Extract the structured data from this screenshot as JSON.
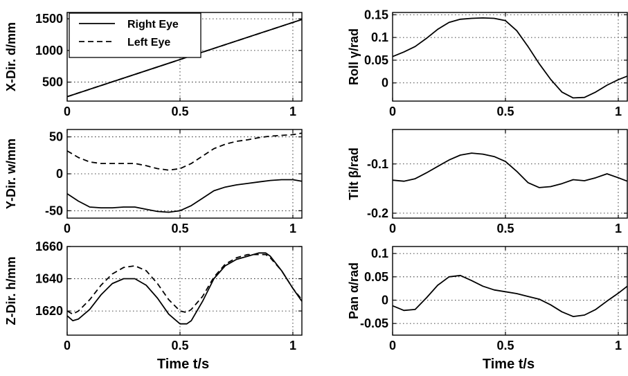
{
  "chart_data": [
    {
      "type": "line",
      "panel": "top-left",
      "ylabel": "X-Dir.  d/mm",
      "xlabel": "",
      "xlim": [
        0,
        1.04
      ],
      "ylim": [
        200,
        1600
      ],
      "xticks": [
        0,
        0.5,
        1
      ],
      "yticks": [
        500,
        1000,
        1500
      ],
      "xtick_labels": [
        "0",
        "0.5",
        "1"
      ],
      "ytick_labels": [
        "500",
        "1000",
        "1500"
      ],
      "grid": true,
      "legend": {
        "placement": "top-left",
        "entries": [
          "Right Eye",
          "Left Eye"
        ]
      },
      "series": [
        {
          "name": "Right Eye",
          "style": "solid",
          "x": [
            0,
            1.04
          ],
          "y": [
            270,
            1490
          ]
        },
        {
          "name": "Left Eye",
          "style": "dashed",
          "x": [
            0,
            1.04
          ],
          "y": [
            270,
            1490
          ]
        }
      ]
    },
    {
      "type": "line",
      "panel": "middle-left",
      "ylabel": "Y-Dir.  w/mm",
      "xlabel": "",
      "xlim": [
        0,
        1.04
      ],
      "ylim": [
        -60,
        60
      ],
      "xticks": [
        0,
        0.5,
        1
      ],
      "yticks": [
        -50,
        0,
        50
      ],
      "xtick_labels": [
        "0",
        "0.5",
        "1"
      ],
      "ytick_labels": [
        "-50",
        "0",
        "50"
      ],
      "grid": true,
      "series": [
        {
          "style": "solid",
          "x": [
            0,
            0.05,
            0.1,
            0.15,
            0.2,
            0.25,
            0.3,
            0.35,
            0.4,
            0.45,
            0.5,
            0.55,
            0.6,
            0.65,
            0.7,
            0.75,
            0.8,
            0.85,
            0.9,
            0.95,
            1.0,
            1.04
          ],
          "y": [
            -27,
            -37,
            -45,
            -46,
            -46,
            -45,
            -45,
            -48,
            -51,
            -52,
            -50,
            -43,
            -33,
            -23,
            -18,
            -15,
            -13,
            -11,
            -9,
            -8,
            -8,
            -10
          ]
        },
        {
          "style": "dashed",
          "x": [
            0,
            0.05,
            0.1,
            0.15,
            0.2,
            0.25,
            0.3,
            0.35,
            0.4,
            0.45,
            0.5,
            0.55,
            0.6,
            0.65,
            0.7,
            0.75,
            0.8,
            0.85,
            0.9,
            0.95,
            1.0,
            1.04
          ],
          "y": [
            31,
            22,
            16,
            14,
            14,
            14,
            14,
            11,
            7,
            5,
            7,
            14,
            24,
            34,
            40,
            44,
            46,
            49,
            51,
            52,
            53,
            55
          ]
        }
      ]
    },
    {
      "type": "line",
      "panel": "bottom-left",
      "ylabel": "Z-Dir.  h/mm",
      "xlabel": "Time   t/s",
      "xlim": [
        0,
        1.04
      ],
      "ylim": [
        1605,
        1660
      ],
      "xticks": [
        0,
        0.5,
        1
      ],
      "yticks": [
        1620,
        1640,
        1660
      ],
      "xtick_labels": [
        "0",
        "0.5",
        "1"
      ],
      "ytick_labels": [
        "1620",
        "1640",
        "1660"
      ],
      "grid": true,
      "series": [
        {
          "style": "solid",
          "x": [
            0,
            0.025,
            0.05,
            0.1,
            0.15,
            0.2,
            0.25,
            0.3,
            0.35,
            0.4,
            0.45,
            0.5,
            0.53,
            0.55,
            0.6,
            0.65,
            0.7,
            0.75,
            0.8,
            0.85,
            0.88,
            0.9,
            0.95,
            1.0,
            1.04
          ],
          "y": [
            1617,
            1614,
            1615,
            1621,
            1630,
            1637,
            1640,
            1640,
            1636,
            1628,
            1618,
            1612,
            1612,
            1614,
            1626,
            1640,
            1648,
            1652,
            1654,
            1656,
            1656,
            1654,
            1645,
            1634,
            1626
          ]
        },
        {
          "style": "dashed",
          "x": [
            0,
            0.025,
            0.05,
            0.1,
            0.15,
            0.2,
            0.25,
            0.3,
            0.35,
            0.4,
            0.45,
            0.5,
            0.53,
            0.55,
            0.6,
            0.65,
            0.7,
            0.75,
            0.8,
            0.85,
            0.88,
            0.9,
            0.95,
            1.0,
            1.04
          ],
          "y": [
            1620,
            1618,
            1620,
            1627,
            1636,
            1643,
            1647,
            1648,
            1645,
            1637,
            1627,
            1620,
            1619,
            1621,
            1629,
            1641,
            1649,
            1653,
            1655,
            1655,
            1655,
            1653,
            1645,
            1634,
            1627
          ]
        }
      ]
    },
    {
      "type": "line",
      "panel": "top-right",
      "ylabel": "Roll  γ/rad",
      "xlabel": "",
      "xlim": [
        0,
        1.04
      ],
      "ylim": [
        -0.04,
        0.155
      ],
      "xticks": [
        0,
        0.5,
        1
      ],
      "yticks": [
        0,
        0.05,
        0.1,
        0.15
      ],
      "xtick_labels": [
        "0",
        "0.5",
        "1"
      ],
      "ytick_labels": [
        "0",
        "0.05",
        "0.1",
        "0.15"
      ],
      "grid": true,
      "series": [
        {
          "style": "solid",
          "x": [
            0,
            0.05,
            0.1,
            0.15,
            0.2,
            0.25,
            0.3,
            0.35,
            0.4,
            0.45,
            0.5,
            0.55,
            0.6,
            0.65,
            0.7,
            0.75,
            0.8,
            0.85,
            0.9,
            0.95,
            1.0,
            1.04
          ],
          "y": [
            0.058,
            0.068,
            0.08,
            0.098,
            0.118,
            0.133,
            0.14,
            0.142,
            0.143,
            0.142,
            0.137,
            0.115,
            0.08,
            0.042,
            0.008,
            -0.02,
            -0.033,
            -0.032,
            -0.02,
            -0.005,
            0.007,
            0.015
          ]
        }
      ]
    },
    {
      "type": "line",
      "panel": "middle-right",
      "ylabel": "Tilt  β/rad",
      "xlabel": "",
      "xlim": [
        0,
        1.04
      ],
      "ylim": [
        -0.21,
        -0.03
      ],
      "xticks": [
        0,
        0.5,
        1
      ],
      "yticks": [
        -0.2,
        -0.1
      ],
      "xtick_labels": [
        "0",
        "0.5",
        "1"
      ],
      "ytick_labels": [
        "-0.2",
        "-0.1"
      ],
      "grid": true,
      "series": [
        {
          "style": "solid",
          "x": [
            0,
            0.05,
            0.1,
            0.15,
            0.2,
            0.25,
            0.3,
            0.35,
            0.4,
            0.45,
            0.5,
            0.55,
            0.6,
            0.65,
            0.7,
            0.75,
            0.8,
            0.85,
            0.9,
            0.95,
            1.0,
            1.04
          ],
          "y": [
            -0.133,
            -0.135,
            -0.13,
            -0.118,
            -0.105,
            -0.092,
            -0.082,
            -0.078,
            -0.08,
            -0.085,
            -0.095,
            -0.115,
            -0.138,
            -0.148,
            -0.146,
            -0.14,
            -0.132,
            -0.134,
            -0.128,
            -0.12,
            -0.128,
            -0.135
          ]
        }
      ]
    },
    {
      "type": "line",
      "panel": "bottom-right",
      "ylabel": "Pan  α/rad",
      "xlabel": "Time   t/s",
      "xlim": [
        0,
        1.04
      ],
      "ylim": [
        -0.075,
        0.115
      ],
      "xticks": [
        0,
        0.5,
        1
      ],
      "yticks": [
        -0.05,
        0,
        0.05,
        0.1
      ],
      "xtick_labels": [
        "0",
        "0.5",
        "1"
      ],
      "ytick_labels": [
        "-0.05",
        "0",
        "0.05",
        "0.1"
      ],
      "grid": true,
      "series": [
        {
          "style": "solid",
          "x": [
            0,
            0.05,
            0.1,
            0.15,
            0.2,
            0.25,
            0.3,
            0.35,
            0.4,
            0.45,
            0.5,
            0.55,
            0.6,
            0.65,
            0.7,
            0.75,
            0.8,
            0.85,
            0.9,
            0.95,
            1.0,
            1.04
          ],
          "y": [
            -0.012,
            -0.022,
            -0.02,
            0.005,
            0.032,
            0.05,
            0.053,
            0.042,
            0.03,
            0.022,
            0.018,
            0.014,
            0.008,
            0.002,
            -0.01,
            -0.025,
            -0.035,
            -0.032,
            -0.02,
            -0.002,
            0.015,
            0.03
          ]
        }
      ]
    }
  ]
}
